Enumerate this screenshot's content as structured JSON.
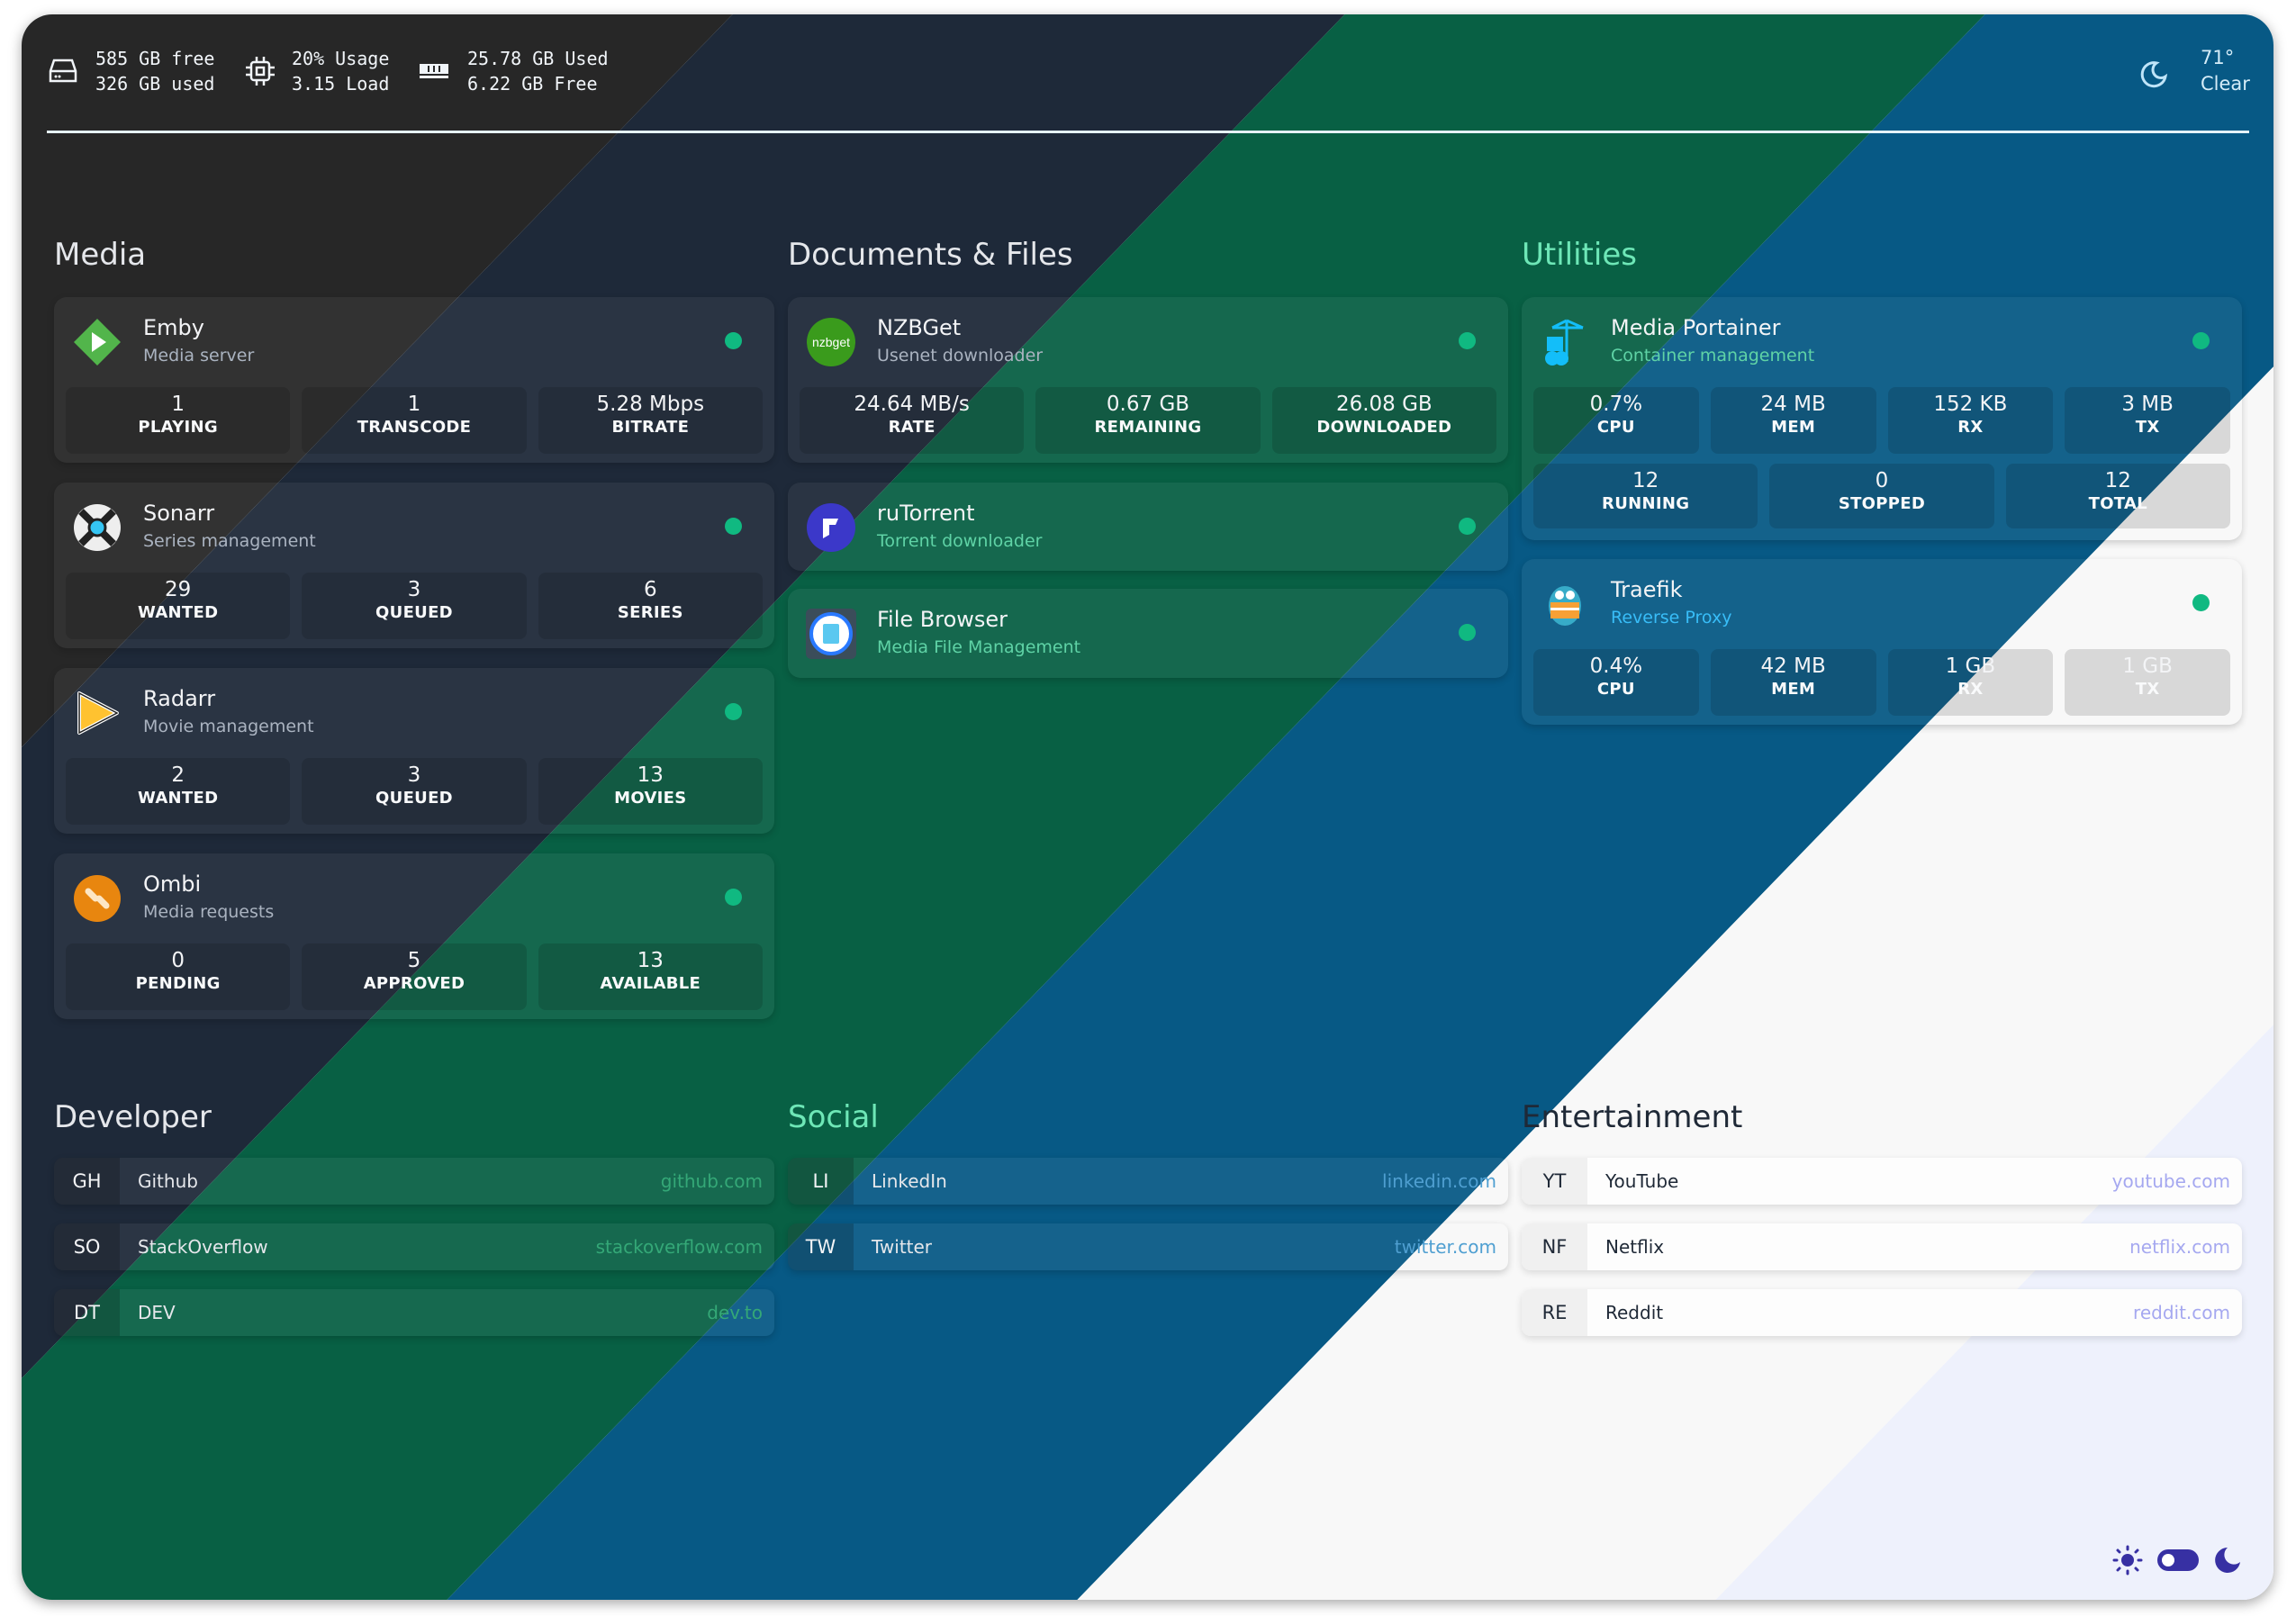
{
  "colors": {
    "bands": [
      "#272727",
      "#1e2939",
      "#086044",
      "#075985",
      "#f8f8f8",
      "#eef1fc"
    ],
    "status_online": "#10b981",
    "toggle_accent": "#3730a3"
  },
  "header": {
    "disk": {
      "icon": "hard-drive-icon",
      "line1": "585 GB free",
      "line2": "326 GB used"
    },
    "cpu": {
      "icon": "cpu-chip-icon",
      "line1": "20% Usage",
      "line2": "3.15 Load"
    },
    "memory": {
      "icon": "memory-ram-icon",
      "line1": "25.78 GB Used",
      "line2": "6.22 GB Free"
    },
    "weather": {
      "icon": "moon-clear-night-icon",
      "temperature": "71°",
      "condition": "Clear"
    }
  },
  "sections": [
    {
      "title": "Media",
      "services": [
        {
          "name": "Emby",
          "description": "Media server",
          "icon": "emby-icon",
          "status": "online",
          "stats": [
            {
              "value": "1",
              "label": "PLAYING"
            },
            {
              "value": "1",
              "label": "TRANSCODE"
            },
            {
              "value": "5.28 Mbps",
              "label": "BITRATE"
            }
          ]
        },
        {
          "name": "Sonarr",
          "description": "Series management",
          "icon": "sonarr-icon",
          "status": "online",
          "stats": [
            {
              "value": "29",
              "label": "WANTED"
            },
            {
              "value": "3",
              "label": "QUEUED"
            },
            {
              "value": "6",
              "label": "SERIES"
            }
          ]
        },
        {
          "name": "Radarr",
          "description": "Movie management",
          "icon": "radarr-icon",
          "status": "online",
          "stats": [
            {
              "value": "2",
              "label": "WANTED"
            },
            {
              "value": "3",
              "label": "QUEUED"
            },
            {
              "value": "13",
              "label": "MOVIES"
            }
          ]
        },
        {
          "name": "Ombi",
          "description": "Media requests",
          "icon": "ombi-icon",
          "status": "online",
          "stats": [
            {
              "value": "0",
              "label": "PENDING"
            },
            {
              "value": "5",
              "label": "APPROVED"
            },
            {
              "value": "13",
              "label": "AVAILABLE"
            }
          ]
        }
      ]
    },
    {
      "title": "Documents & Files",
      "services": [
        {
          "name": "NZBGet",
          "description": "Usenet downloader",
          "icon": "nzbget-icon",
          "icon_text": "nzbget",
          "status": "online",
          "stats": [
            {
              "value": "24.64 MB/s",
              "label": "RATE"
            },
            {
              "value": "0.67 GB",
              "label": "REMAINING"
            },
            {
              "value": "26.08 GB",
              "label": "DOWNLOADED"
            }
          ]
        },
        {
          "name": "ruTorrent",
          "description": "Torrent downloader",
          "icon": "rutorrent-icon",
          "status": "online",
          "stats": []
        },
        {
          "name": "File Browser",
          "description": "Media File Management",
          "icon": "file-browser-icon",
          "status": "online",
          "stats": []
        }
      ]
    },
    {
      "title": "Utilities",
      "services": [
        {
          "name": "Media Portainer",
          "description": "Container management",
          "icon": "portainer-icon",
          "status": "online",
          "stats": [
            {
              "value": "0.7%",
              "label": "CPU"
            },
            {
              "value": "24 MB",
              "label": "MEM"
            },
            {
              "value": "152 KB",
              "label": "RX"
            },
            {
              "value": "3 MB",
              "label": "TX"
            }
          ],
          "stats2": [
            {
              "value": "12",
              "label": "RUNNING"
            },
            {
              "value": "0",
              "label": "STOPPED"
            },
            {
              "value": "12",
              "label": "TOTAL"
            }
          ]
        },
        {
          "name": "Traefik",
          "description": "Reverse Proxy",
          "icon": "traefik-gopher-icon",
          "status": "online",
          "stats": [
            {
              "value": "0.4%",
              "label": "CPU"
            },
            {
              "value": "42 MB",
              "label": "MEM"
            },
            {
              "value": "1 GB",
              "label": "RX"
            },
            {
              "value": "1 GB",
              "label": "TX"
            }
          ]
        }
      ]
    }
  ],
  "bookmarks": [
    {
      "title": "Developer",
      "items": [
        {
          "abbr": "GH",
          "name": "Github",
          "url": "github.com"
        },
        {
          "abbr": "SO",
          "name": "StackOverflow",
          "url": "stackoverflow.com"
        },
        {
          "abbr": "DT",
          "name": "DEV",
          "url": "dev.to"
        }
      ]
    },
    {
      "title": "Social",
      "items": [
        {
          "abbr": "LI",
          "name": "LinkedIn",
          "url": "linkedin.com"
        },
        {
          "abbr": "TW",
          "name": "Twitter",
          "url": "twitter.com"
        }
      ]
    },
    {
      "title": "Entertainment",
      "items": [
        {
          "abbr": "YT",
          "name": "YouTube",
          "url": "youtube.com"
        },
        {
          "abbr": "NF",
          "name": "Netflix",
          "url": "netflix.com"
        },
        {
          "abbr": "RE",
          "name": "Reddit",
          "url": "reddit.com"
        }
      ]
    }
  ],
  "theme_toggle": {
    "sun_icon": "sun-icon",
    "moon_icon": "moon-icon",
    "mode": "dark"
  }
}
